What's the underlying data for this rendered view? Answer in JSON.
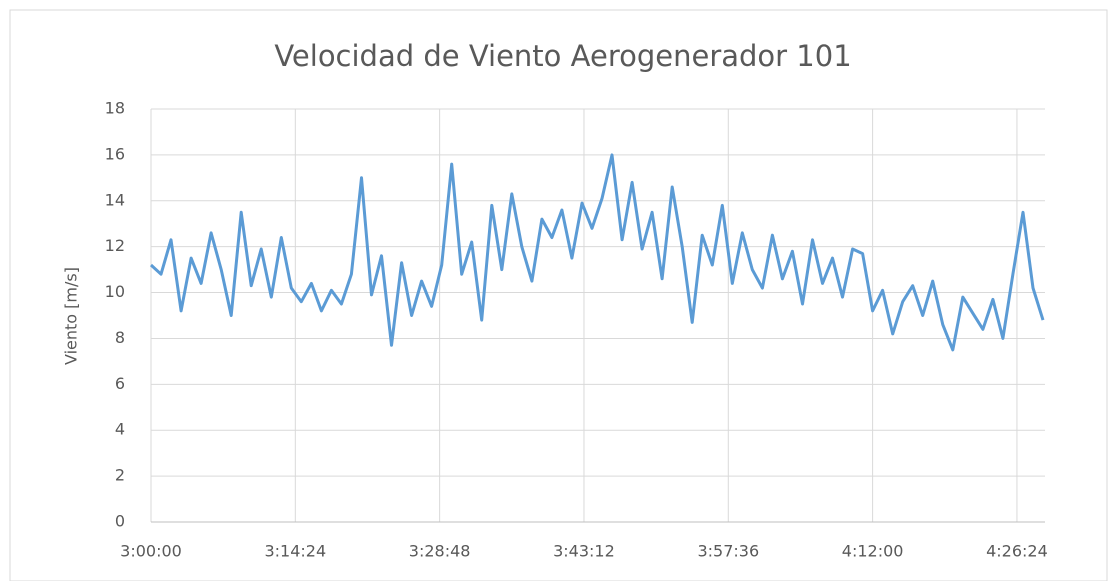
{
  "chart_data": {
    "type": "line",
    "title": "Velocidad de Viento Aerogenerador 101",
    "ylabel": "Viento [m/s]",
    "x": [
      "3:00:00",
      "3:01:00",
      "3:02:00",
      "3:03:00",
      "3:04:00",
      "3:05:00",
      "3:06:00",
      "3:07:00",
      "3:08:00",
      "3:09:00",
      "3:10:00",
      "3:11:00",
      "3:12:00",
      "3:13:00",
      "3:14:00",
      "3:15:00",
      "3:16:00",
      "3:17:00",
      "3:18:00",
      "3:19:00",
      "3:20:00",
      "3:21:00",
      "3:22:00",
      "3:23:00",
      "3:24:00",
      "3:25:00",
      "3:26:00",
      "3:27:00",
      "3:28:00",
      "3:29:00",
      "3:30:00",
      "3:31:00",
      "3:32:00",
      "3:33:00",
      "3:34:00",
      "3:35:00",
      "3:36:00",
      "3:37:00",
      "3:38:00",
      "3:39:00",
      "3:40:00",
      "3:41:00",
      "3:42:00",
      "3:43:00",
      "3:44:00",
      "3:45:00",
      "3:46:00",
      "3:47:00",
      "3:48:00",
      "3:49:00",
      "3:50:00",
      "3:51:00",
      "3:52:00",
      "3:53:00",
      "3:54:00",
      "3:55:00",
      "3:56:00",
      "3:57:00",
      "3:58:00",
      "3:59:00",
      "4:00:00",
      "4:01:00",
      "4:02:00",
      "4:03:00",
      "4:04:00",
      "4:05:00",
      "4:06:00",
      "4:07:00",
      "4:08:00",
      "4:09:00",
      "4:10:00",
      "4:11:00",
      "4:12:00",
      "4:13:00",
      "4:14:00",
      "4:15:00",
      "4:16:00",
      "4:17:00",
      "4:18:00",
      "4:19:00",
      "4:20:00",
      "4:21:00",
      "4:22:00",
      "4:23:00",
      "4:24:00",
      "4:25:00",
      "4:26:00",
      "4:27:00",
      "4:28:00",
      "4:29:00"
    ],
    "series": [
      {
        "name": "Viento",
        "color": "#5b9bd5",
        "values": [
          11.2,
          10.8,
          12.3,
          9.2,
          11.5,
          10.4,
          12.6,
          11.0,
          9.0,
          13.5,
          10.3,
          11.9,
          9.8,
          12.4,
          10.2,
          9.6,
          10.4,
          9.2,
          10.1,
          9.5,
          10.8,
          15.0,
          9.9,
          11.6,
          7.7,
          11.3,
          9.0,
          10.5,
          9.4,
          11.2,
          15.6,
          10.8,
          12.2,
          8.8,
          13.8,
          11.0,
          14.3,
          12.0,
          10.5,
          13.2,
          12.4,
          13.6,
          11.5,
          13.9,
          12.8,
          14.1,
          16.0,
          12.3,
          14.8,
          11.9,
          13.5,
          10.6,
          14.6,
          12.0,
          8.7,
          12.5,
          11.2,
          13.8,
          10.4,
          12.6,
          11.0,
          10.2,
          12.5,
          10.6,
          11.8,
          9.5,
          12.3,
          10.4,
          11.5,
          9.8,
          11.9,
          11.7,
          9.2,
          10.1,
          8.2,
          9.6,
          10.3,
          9.0,
          10.5,
          8.6,
          7.5,
          9.8,
          9.1,
          8.4,
          9.7,
          8.0,
          10.8,
          13.5,
          10.2,
          8.8
        ]
      }
    ],
    "xlim": [
      "3:00:00",
      "4:29:12"
    ],
    "xticks": [
      "3:00:00",
      "3:14:24",
      "3:28:48",
      "3:43:12",
      "3:57:36",
      "4:12:00",
      "4:26:24"
    ],
    "ylim": [
      0,
      18
    ],
    "yticks": [
      0,
      2,
      4,
      6,
      8,
      10,
      12,
      14,
      16,
      18
    ],
    "grid": true
  }
}
